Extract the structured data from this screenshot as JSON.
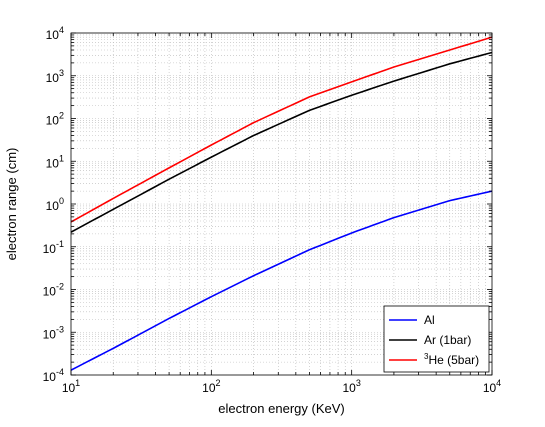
{
  "chart_data": {
    "type": "line",
    "title": "",
    "xlabel": "electron energy (KeV)",
    "ylabel": "electron range (cm)",
    "xscale": "log",
    "yscale": "log",
    "xlim": [
      10,
      10000
    ],
    "ylim": [
      0.0001,
      10000
    ],
    "grid": true,
    "legend_position": "bottom-right",
    "x_tick_labels": [
      {
        "base": "10",
        "exp": "1"
      },
      {
        "base": "10",
        "exp": "2"
      },
      {
        "base": "10",
        "exp": "3"
      },
      {
        "base": "10",
        "exp": "4"
      }
    ],
    "y_tick_labels": [
      {
        "base": "10",
        "exp": "-4"
      },
      {
        "base": "10",
        "exp": "-3"
      },
      {
        "base": "10",
        "exp": "-2"
      },
      {
        "base": "10",
        "exp": "-1"
      },
      {
        "base": "10",
        "exp": "0"
      },
      {
        "base": "10",
        "exp": "1"
      },
      {
        "base": "10",
        "exp": "2"
      },
      {
        "base": "10",
        "exp": "3"
      },
      {
        "base": "10",
        "exp": "4"
      }
    ],
    "x": [
      10,
      20,
      50,
      100,
      200,
      500,
      1000,
      2000,
      5000,
      10000
    ],
    "series": [
      {
        "name": "Al",
        "color": "#0000ff",
        "values": [
          0.00013,
          0.00042,
          0.0021,
          0.0068,
          0.021,
          0.085,
          0.21,
          0.48,
          1.2,
          2.0
        ]
      },
      {
        "name": "Ar (1bar)",
        "color": "#000000",
        "values": [
          0.22,
          0.75,
          3.8,
          12.5,
          40,
          155,
          350,
          750,
          1900,
          3500
        ]
      },
      {
        "name_sup": "3",
        "name": "He (5bar)",
        "color": "#ff0000",
        "values": [
          0.38,
          1.35,
          7.0,
          24,
          80,
          320,
          720,
          1600,
          4000,
          8000
        ]
      }
    ]
  }
}
